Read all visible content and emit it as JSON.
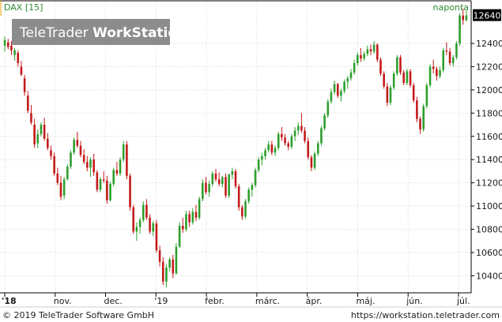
{
  "header": {
    "instrument": "DAX [15]",
    "period": "naponta"
  },
  "watermark": {
    "brand_regular": "TeleTrader ",
    "brand_bold": "WorkStation"
  },
  "footer": {
    "copyright": "© 2019 TeleTrader Software GmbH",
    "url": "https://workstation.teletrader.com"
  },
  "colors": {
    "up": "#2e9e2e",
    "down": "#c41a1a",
    "background": "#ffffff",
    "watermark_bg": "#8c8c8c",
    "last_price_bg": "#000000"
  },
  "chart_data": {
    "type": "candlestick",
    "title": "DAX [15]",
    "subtitle": "naponta",
    "last_price": 12640,
    "y_ticks": [
      10400,
      10600,
      10800,
      11000,
      11200,
      11400,
      11600,
      11800,
      12000,
      12200,
      12400
    ],
    "ylim": [
      10260,
      12760
    ],
    "x_ticks": [
      "'18",
      "nov.",
      "dec.",
      "'19",
      "febr.",
      "márc.",
      "ápr.",
      "máj.",
      "jún.",
      "júl."
    ],
    "grid": true,
    "candles": [
      {
        "o": 12380,
        "h": 12460,
        "l": 12330,
        "c": 12430
      },
      {
        "o": 12410,
        "h": 12440,
        "l": 12350,
        "c": 12370
      },
      {
        "o": 12380,
        "h": 12420,
        "l": 12300,
        "c": 12340
      },
      {
        "o": 12300,
        "h": 12360,
        "l": 12250,
        "c": 12340
      },
      {
        "o": 12320,
        "h": 12340,
        "l": 12200,
        "c": 12230
      },
      {
        "o": 12200,
        "h": 12250,
        "l": 12120,
        "c": 12130
      },
      {
        "o": 12100,
        "h": 12130,
        "l": 11950,
        "c": 11980
      },
      {
        "o": 11950,
        "h": 11990,
        "l": 11800,
        "c": 11820
      },
      {
        "o": 11800,
        "h": 11870,
        "l": 11700,
        "c": 11720
      },
      {
        "o": 11700,
        "h": 11750,
        "l": 11500,
        "c": 11530
      },
      {
        "o": 11540,
        "h": 11660,
        "l": 11500,
        "c": 11620
      },
      {
        "o": 11620,
        "h": 11720,
        "l": 11600,
        "c": 11700
      },
      {
        "o": 11700,
        "h": 11760,
        "l": 11560,
        "c": 11580
      },
      {
        "o": 11580,
        "h": 11630,
        "l": 11480,
        "c": 11500
      },
      {
        "o": 11480,
        "h": 11520,
        "l": 11400,
        "c": 11430
      },
      {
        "o": 11430,
        "h": 11460,
        "l": 11260,
        "c": 11280
      },
      {
        "o": 11280,
        "h": 11330,
        "l": 11180,
        "c": 11200
      },
      {
        "o": 11200,
        "h": 11260,
        "l": 11050,
        "c": 11080
      },
      {
        "o": 11090,
        "h": 11250,
        "l": 11060,
        "c": 11230
      },
      {
        "o": 11230,
        "h": 11360,
        "l": 11220,
        "c": 11340
      },
      {
        "o": 11340,
        "h": 11480,
        "l": 11320,
        "c": 11460
      },
      {
        "o": 11460,
        "h": 11590,
        "l": 11440,
        "c": 11570
      },
      {
        "o": 11570,
        "h": 11640,
        "l": 11500,
        "c": 11520
      },
      {
        "o": 11520,
        "h": 11560,
        "l": 11420,
        "c": 11440
      },
      {
        "o": 11440,
        "h": 11490,
        "l": 11360,
        "c": 11380
      },
      {
        "o": 11380,
        "h": 11430,
        "l": 11300,
        "c": 11330
      },
      {
        "o": 11330,
        "h": 11420,
        "l": 11250,
        "c": 11400
      },
      {
        "o": 11400,
        "h": 11450,
        "l": 11260,
        "c": 11290
      },
      {
        "o": 11290,
        "h": 11310,
        "l": 11120,
        "c": 11140
      },
      {
        "o": 11140,
        "h": 11250,
        "l": 11120,
        "c": 11230
      },
      {
        "o": 11230,
        "h": 11300,
        "l": 11200,
        "c": 11220
      },
      {
        "o": 11220,
        "h": 11260,
        "l": 11020,
        "c": 11050
      },
      {
        "o": 11050,
        "h": 11210,
        "l": 11040,
        "c": 11190
      },
      {
        "o": 11190,
        "h": 11330,
        "l": 11170,
        "c": 11310
      },
      {
        "o": 11310,
        "h": 11380,
        "l": 11260,
        "c": 11280
      },
      {
        "o": 11280,
        "h": 11420,
        "l": 11260,
        "c": 11400
      },
      {
        "o": 11400,
        "h": 11560,
        "l": 11380,
        "c": 11530
      },
      {
        "o": 11530,
        "h": 11560,
        "l": 11230,
        "c": 11260
      },
      {
        "o": 11260,
        "h": 11280,
        "l": 10960,
        "c": 10990
      },
      {
        "o": 10990,
        "h": 11010,
        "l": 10760,
        "c": 10780
      },
      {
        "o": 10780,
        "h": 10860,
        "l": 10700,
        "c": 10820
      },
      {
        "o": 10820,
        "h": 10900,
        "l": 10760,
        "c": 10880
      },
      {
        "o": 10880,
        "h": 11040,
        "l": 10860,
        "c": 11010
      },
      {
        "o": 11010,
        "h": 11060,
        "l": 10880,
        "c": 10900
      },
      {
        "o": 10900,
        "h": 10930,
        "l": 10760,
        "c": 10780
      },
      {
        "o": 10780,
        "h": 10870,
        "l": 10740,
        "c": 10850
      },
      {
        "o": 10850,
        "h": 10880,
        "l": 10600,
        "c": 10620
      },
      {
        "o": 10620,
        "h": 10660,
        "l": 10480,
        "c": 10520
      },
      {
        "o": 10520,
        "h": 10560,
        "l": 10320,
        "c": 10350
      },
      {
        "o": 10350,
        "h": 10500,
        "l": 10300,
        "c": 10470
      },
      {
        "o": 10470,
        "h": 10560,
        "l": 10440,
        "c": 10540
      },
      {
        "o": 10540,
        "h": 10580,
        "l": 10380,
        "c": 10420
      },
      {
        "o": 10420,
        "h": 10680,
        "l": 10410,
        "c": 10650
      },
      {
        "o": 10650,
        "h": 10860,
        "l": 10640,
        "c": 10830
      },
      {
        "o": 10830,
        "h": 10900,
        "l": 10770,
        "c": 10800
      },
      {
        "o": 10800,
        "h": 10960,
        "l": 10780,
        "c": 10930
      },
      {
        "o": 10930,
        "h": 10960,
        "l": 10820,
        "c": 10860
      },
      {
        "o": 10860,
        "h": 10980,
        "l": 10840,
        "c": 10950
      },
      {
        "o": 10950,
        "h": 11010,
        "l": 10870,
        "c": 10900
      },
      {
        "o": 10900,
        "h": 11080,
        "l": 10880,
        "c": 11060
      },
      {
        "o": 11060,
        "h": 11230,
        "l": 11040,
        "c": 11200
      },
      {
        "o": 11200,
        "h": 11250,
        "l": 11100,
        "c": 11120
      },
      {
        "o": 11120,
        "h": 11220,
        "l": 11080,
        "c": 11190
      },
      {
        "o": 11190,
        "h": 11300,
        "l": 11170,
        "c": 11280
      },
      {
        "o": 11280,
        "h": 11320,
        "l": 11210,
        "c": 11230
      },
      {
        "o": 11230,
        "h": 11290,
        "l": 11170,
        "c": 11190
      },
      {
        "o": 11190,
        "h": 11260,
        "l": 11160,
        "c": 11250
      },
      {
        "o": 11250,
        "h": 11280,
        "l": 11070,
        "c": 11090
      },
      {
        "o": 11090,
        "h": 11280,
        "l": 11070,
        "c": 11270
      },
      {
        "o": 11270,
        "h": 11330,
        "l": 11230,
        "c": 11300
      },
      {
        "o": 11300,
        "h": 11320,
        "l": 11150,
        "c": 11170
      },
      {
        "o": 11170,
        "h": 11190,
        "l": 10960,
        "c": 10990
      },
      {
        "o": 10990,
        "h": 11010,
        "l": 10880,
        "c": 10910
      },
      {
        "o": 10910,
        "h": 11060,
        "l": 10890,
        "c": 11040
      },
      {
        "o": 11040,
        "h": 11160,
        "l": 11020,
        "c": 11140
      },
      {
        "o": 11140,
        "h": 11200,
        "l": 11080,
        "c": 11180
      },
      {
        "o": 11180,
        "h": 11330,
        "l": 11160,
        "c": 11310
      },
      {
        "o": 11310,
        "h": 11420,
        "l": 11290,
        "c": 11400
      },
      {
        "o": 11400,
        "h": 11460,
        "l": 11350,
        "c": 11430
      },
      {
        "o": 11430,
        "h": 11500,
        "l": 11400,
        "c": 11480
      },
      {
        "o": 11480,
        "h": 11560,
        "l": 11460,
        "c": 11530
      },
      {
        "o": 11530,
        "h": 11560,
        "l": 11440,
        "c": 11460
      },
      {
        "o": 11460,
        "h": 11520,
        "l": 11430,
        "c": 11500
      },
      {
        "o": 11500,
        "h": 11640,
        "l": 11480,
        "c": 11620
      },
      {
        "o": 11620,
        "h": 11680,
        "l": 11560,
        "c": 11590
      },
      {
        "o": 11590,
        "h": 11620,
        "l": 11520,
        "c": 11540
      },
      {
        "o": 11540,
        "h": 11560,
        "l": 11480,
        "c": 11510
      },
      {
        "o": 11510,
        "h": 11620,
        "l": 11490,
        "c": 11600
      },
      {
        "o": 11600,
        "h": 11680,
        "l": 11560,
        "c": 11650
      },
      {
        "o": 11650,
        "h": 11720,
        "l": 11610,
        "c": 11690
      },
      {
        "o": 11690,
        "h": 11800,
        "l": 11630,
        "c": 11650
      },
      {
        "o": 11650,
        "h": 11680,
        "l": 11540,
        "c": 11560
      },
      {
        "o": 11560,
        "h": 11590,
        "l": 11400,
        "c": 11420
      },
      {
        "o": 11420,
        "h": 11440,
        "l": 11300,
        "c": 11330
      },
      {
        "o": 11330,
        "h": 11470,
        "l": 11310,
        "c": 11450
      },
      {
        "o": 11450,
        "h": 11560,
        "l": 11430,
        "c": 11540
      },
      {
        "o": 11540,
        "h": 11690,
        "l": 11520,
        "c": 11670
      },
      {
        "o": 11670,
        "h": 11800,
        "l": 11650,
        "c": 11780
      },
      {
        "o": 11780,
        "h": 11920,
        "l": 11760,
        "c": 11900
      },
      {
        "o": 11900,
        "h": 12010,
        "l": 11880,
        "c": 11980
      },
      {
        "o": 11980,
        "h": 12080,
        "l": 11960,
        "c": 12050
      },
      {
        "o": 12050,
        "h": 12060,
        "l": 11930,
        "c": 11950
      },
      {
        "o": 11950,
        "h": 12010,
        "l": 11900,
        "c": 11990
      },
      {
        "o": 11990,
        "h": 12090,
        "l": 11970,
        "c": 12070
      },
      {
        "o": 12070,
        "h": 12120,
        "l": 12010,
        "c": 12100
      },
      {
        "o": 12100,
        "h": 12180,
        "l": 12080,
        "c": 12150
      },
      {
        "o": 12150,
        "h": 12260,
        "l": 12130,
        "c": 12230
      },
      {
        "o": 12230,
        "h": 12320,
        "l": 12210,
        "c": 12300
      },
      {
        "o": 12300,
        "h": 12360,
        "l": 12240,
        "c": 12270
      },
      {
        "o": 12270,
        "h": 12330,
        "l": 12250,
        "c": 12310
      },
      {
        "o": 12310,
        "h": 12380,
        "l": 12290,
        "c": 12350
      },
      {
        "o": 12350,
        "h": 12390,
        "l": 12300,
        "c": 12330
      },
      {
        "o": 12330,
        "h": 12420,
        "l": 12310,
        "c": 12390
      },
      {
        "o": 12390,
        "h": 12400,
        "l": 12240,
        "c": 12260
      },
      {
        "o": 12260,
        "h": 12280,
        "l": 12120,
        "c": 12140
      },
      {
        "o": 12140,
        "h": 12160,
        "l": 12010,
        "c": 12030
      },
      {
        "o": 12030,
        "h": 12060,
        "l": 11860,
        "c": 11890
      },
      {
        "o": 11890,
        "h": 12040,
        "l": 11870,
        "c": 12020
      },
      {
        "o": 12020,
        "h": 12160,
        "l": 12000,
        "c": 12140
      },
      {
        "o": 12140,
        "h": 12300,
        "l": 12120,
        "c": 12280
      },
      {
        "o": 12280,
        "h": 12300,
        "l": 12130,
        "c": 12150
      },
      {
        "o": 12150,
        "h": 12170,
        "l": 12040,
        "c": 12060
      },
      {
        "o": 12060,
        "h": 12180,
        "l": 12040,
        "c": 12160
      },
      {
        "o": 12160,
        "h": 12180,
        "l": 12020,
        "c": 12040
      },
      {
        "o": 12040,
        "h": 12060,
        "l": 11890,
        "c": 11910
      },
      {
        "o": 11910,
        "h": 11940,
        "l": 11720,
        "c": 11750
      },
      {
        "o": 11750,
        "h": 11770,
        "l": 11620,
        "c": 11660
      },
      {
        "o": 11660,
        "h": 11880,
        "l": 11640,
        "c": 11860
      },
      {
        "o": 11860,
        "h": 12060,
        "l": 11840,
        "c": 12040
      },
      {
        "o": 12040,
        "h": 12220,
        "l": 12020,
        "c": 12200
      },
      {
        "o": 12200,
        "h": 12260,
        "l": 12140,
        "c": 12180
      },
      {
        "o": 12180,
        "h": 12200,
        "l": 12080,
        "c": 12120
      },
      {
        "o": 12120,
        "h": 12200,
        "l": 12100,
        "c": 12170
      },
      {
        "o": 12170,
        "h": 12360,
        "l": 12150,
        "c": 12340
      },
      {
        "o": 12340,
        "h": 12410,
        "l": 12300,
        "c": 12330
      },
      {
        "o": 12330,
        "h": 12360,
        "l": 12210,
        "c": 12230
      },
      {
        "o": 12230,
        "h": 12300,
        "l": 12200,
        "c": 12280
      },
      {
        "o": 12280,
        "h": 12420,
        "l": 12260,
        "c": 12400
      },
      {
        "o": 12400,
        "h": 12660,
        "l": 12380,
        "c": 12640
      },
      {
        "o": 12640,
        "h": 12700,
        "l": 12560,
        "c": 12600
      },
      {
        "o": 12600,
        "h": 12680,
        "l": 12590,
        "c": 12640
      }
    ]
  }
}
